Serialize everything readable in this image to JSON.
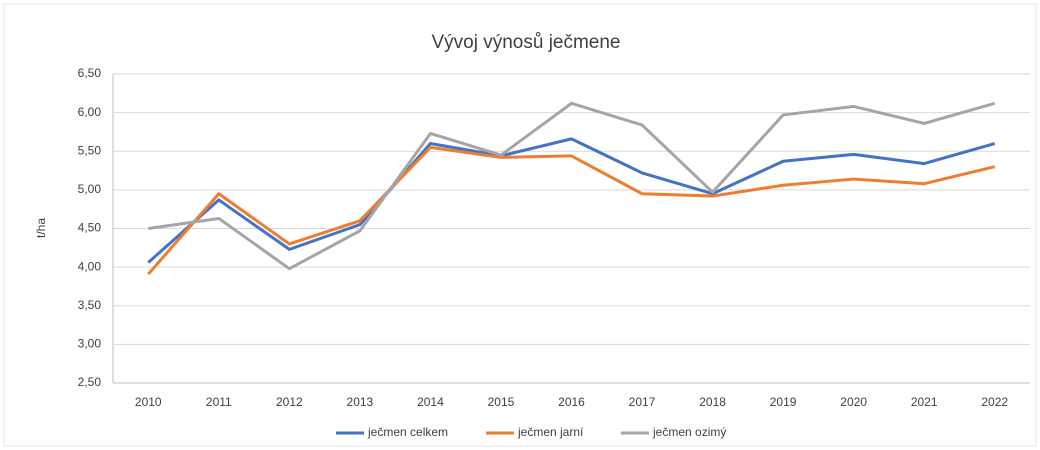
{
  "chart_data": {
    "type": "line",
    "title": "Vývoj výnosů ječmene",
    "y_label": "t/ha",
    "categories": [
      "2010",
      "2011",
      "2012",
      "2013",
      "2014",
      "2015",
      "2016",
      "2017",
      "2018",
      "2019",
      "2020",
      "2021",
      "2022"
    ],
    "series": [
      {
        "name": "ječmen celkem",
        "color": "#4472c4",
        "values": [
          4.06,
          4.87,
          4.23,
          4.55,
          5.6,
          5.44,
          5.66,
          5.22,
          4.95,
          5.37,
          5.46,
          5.34,
          5.6
        ]
      },
      {
        "name": "ječmen jarní",
        "color": "#ed7d31",
        "values": [
          3.91,
          4.95,
          4.3,
          4.6,
          5.55,
          5.42,
          5.44,
          4.95,
          4.92,
          5.06,
          5.14,
          5.08,
          5.3
        ]
      },
      {
        "name": "ječmen ozimý",
        "color": "#a5a5a5",
        "values": [
          4.5,
          4.63,
          3.98,
          4.47,
          5.73,
          5.45,
          6.12,
          5.84,
          4.97,
          5.97,
          6.08,
          5.86,
          6.12
        ]
      }
    ],
    "ylim": [
      2.5,
      6.5
    ],
    "yticks": [
      {
        "value": 2.5,
        "label": "2,50"
      },
      {
        "value": 3,
        "label": "3,00"
      },
      {
        "value": 3.5,
        "label": "3,50"
      },
      {
        "value": 4,
        "label": "4,00"
      },
      {
        "value": 4.5,
        "label": "4,50"
      },
      {
        "value": 5,
        "label": "5,00"
      },
      {
        "value": 5.5,
        "label": "5,50"
      },
      {
        "value": 6,
        "label": "6,00"
      },
      {
        "value": 6.5,
        "label": "6,50"
      }
    ],
    "grid": true,
    "legend": "bottom"
  }
}
